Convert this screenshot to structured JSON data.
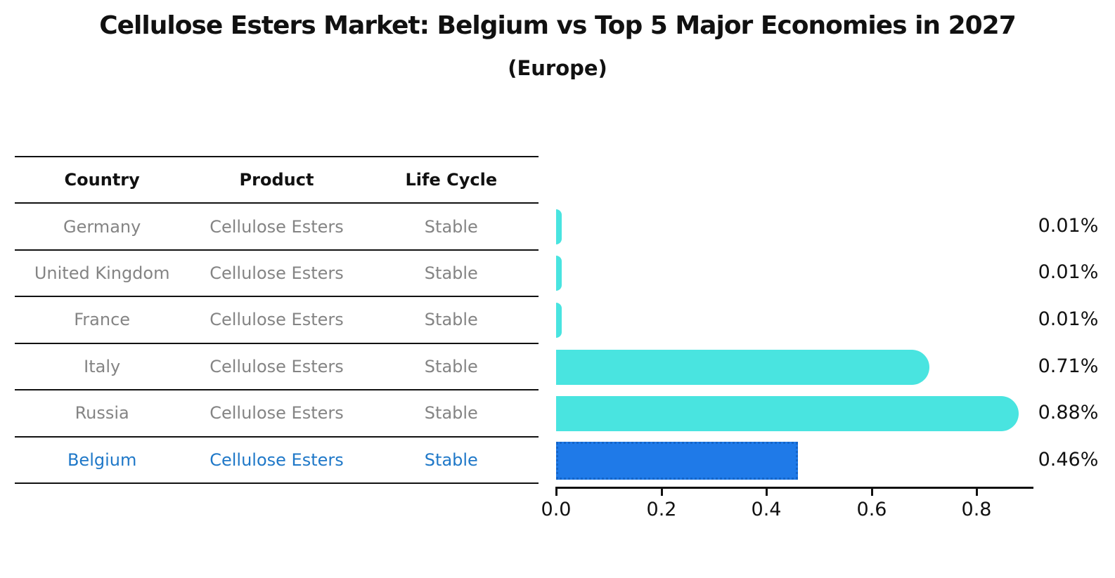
{
  "title": "Cellulose Esters Market: Belgium vs Top 5 Major Economies in 2027",
  "subtitle": "(Europe)",
  "table": {
    "headers": [
      "Country",
      "Product",
      "Life Cycle"
    ],
    "rows": [
      {
        "country": "Germany",
        "product": "Cellulose Esters",
        "life_cycle": "Stable",
        "highlighted": false
      },
      {
        "country": "United Kingdom",
        "product": "Cellulose Esters",
        "life_cycle": "Stable",
        "highlighted": false
      },
      {
        "country": "France",
        "product": "Cellulose Esters",
        "life_cycle": "Stable",
        "highlighted": false
      },
      {
        "country": "Italy",
        "product": "Cellulose Esters",
        "life_cycle": "Stable",
        "highlighted": false
      },
      {
        "country": "Russia",
        "product": "Cellulose Esters",
        "life_cycle": "Stable",
        "highlighted": false
      },
      {
        "country": "Belgium",
        "product": "Cellulose Esters",
        "life_cycle": "Stable",
        "highlighted": true
      }
    ]
  },
  "chart_data": {
    "type": "bar",
    "orientation": "horizontal",
    "categories": [
      "Germany",
      "United Kingdom",
      "France",
      "Italy",
      "Russia",
      "Belgium"
    ],
    "values": [
      0.01,
      0.01,
      0.01,
      0.71,
      0.88,
      0.46
    ],
    "value_labels": [
      "0.01%",
      "0.01%",
      "0.01%",
      "0.71%",
      "0.88%",
      "0.46%"
    ],
    "xlabel": "",
    "ylabel": "",
    "xlim": [
      0.0,
      0.91
    ],
    "xticks": [
      0.0,
      0.2,
      0.4,
      0.6,
      0.8
    ],
    "xtick_labels": [
      "0.0",
      "0.2",
      "0.4",
      "0.6",
      "0.8"
    ],
    "grid": false,
    "legend": "none",
    "highlight_index": 5
  },
  "colors": {
    "bar_default": "#49e4e0",
    "bar_highlight": "#1f7ae8",
    "bar_highlight_border": "#1465c9",
    "highlight_text": "#1f78c8",
    "table_text": "#848484",
    "header_text": "#111111",
    "axis": "#111111"
  }
}
